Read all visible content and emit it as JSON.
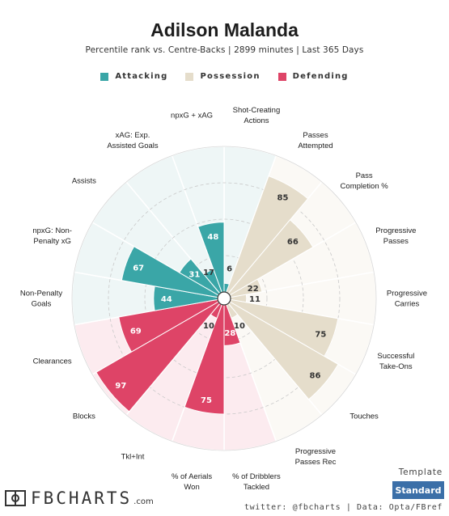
{
  "header": {
    "title": "Adilson Malanda",
    "subtitle": "Percentile rank vs. Centre-Backs | 2899 minutes | Last 365 Days"
  },
  "legend": [
    {
      "label": "Attacking",
      "color": "#3aa6a7"
    },
    {
      "label": "Possession",
      "color": "#e5ddcb"
    },
    {
      "label": "Defending",
      "color": "#de4467"
    }
  ],
  "chart_data": {
    "type": "polar_bar",
    "title": "Adilson Malanda",
    "subtitle": "Percentile rank vs. Centre-Backs | 2899 minutes | Last 365 Days",
    "rlim": [
      0,
      100
    ],
    "colors": {
      "Attacking": "#3aa6a7",
      "Possession": "#e5ddcb",
      "Defending": "#de4467"
    },
    "categories": [
      {
        "label": "Shot-Creating\nActions",
        "value": 6,
        "group": "Attacking"
      },
      {
        "label": "Passes\nAttempted",
        "value": 85,
        "group": "Possession"
      },
      {
        "label": "Pass\nCompletion %",
        "value": 66,
        "group": "Possession"
      },
      {
        "label": "Progressive\nPasses",
        "value": 22,
        "group": "Possession"
      },
      {
        "label": "Progressive\nCarries",
        "value": 11,
        "group": "Possession"
      },
      {
        "label": "Successful\nTake-Ons",
        "value": 75,
        "group": "Possession"
      },
      {
        "label": "Touches",
        "value": 86,
        "group": "Possession"
      },
      {
        "label": "Progressive\nPasses Rec",
        "value": 10,
        "group": "Possession"
      },
      {
        "label": "% of Dribblers\nTackled",
        "value": 28,
        "group": "Defending"
      },
      {
        "label": "% of Aerials\nWon",
        "value": 75,
        "group": "Defending"
      },
      {
        "label": "Tkl+Int",
        "value": 10,
        "group": "Defending"
      },
      {
        "label": "Blocks",
        "value": 97,
        "group": "Defending"
      },
      {
        "label": "Clearances",
        "value": 69,
        "group": "Defending"
      },
      {
        "label": "Non-Penalty\nGoals",
        "value": 44,
        "group": "Attacking"
      },
      {
        "label": "npxG: Non-\nPenalty xG",
        "value": 67,
        "group": "Attacking"
      },
      {
        "label": "Assists",
        "value": 31,
        "group": "Attacking"
      },
      {
        "label": "xAG: Exp.\nAssisted Goals",
        "value": 17,
        "group": "Attacking"
      },
      {
        "label": "npxG + xAG",
        "value": 48,
        "group": "Attacking"
      }
    ]
  },
  "footer": {
    "template_label": "Template",
    "template_value": "Standard",
    "credits": "twitter: @fbcharts | Data: Opta/FBref",
    "brand_name": "FBCHARTS",
    "brand_domain": ".com"
  }
}
